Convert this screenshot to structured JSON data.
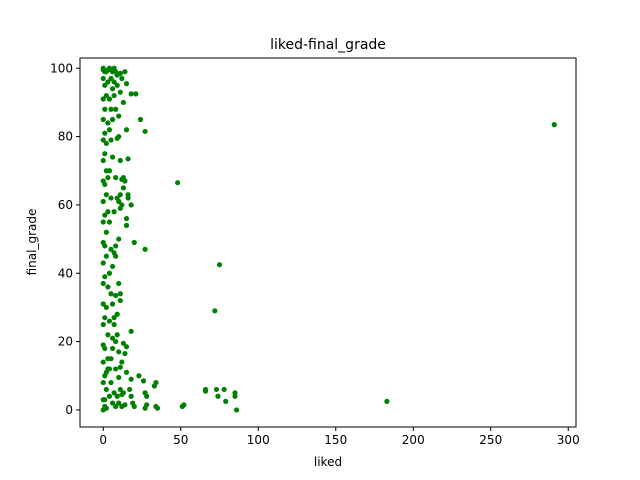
{
  "chart_data": {
    "type": "scatter",
    "title": "liked-final_grade",
    "xlabel": "liked",
    "ylabel": "final_grade",
    "xlim": [
      -15,
      305
    ],
    "ylim": [
      -5,
      103
    ],
    "xticks": [
      0,
      50,
      100,
      150,
      200,
      250,
      300
    ],
    "yticks": [
      0,
      20,
      40,
      60,
      80,
      100
    ],
    "grid": false,
    "legend": "none",
    "marker_color": "#008000",
    "series": [
      {
        "points": [
          [
            291,
            83.5
          ],
          [
            183,
            2.5
          ],
          [
            48,
            66.5
          ],
          [
            75,
            42.5
          ],
          [
            72,
            29
          ],
          [
            51,
            1
          ],
          [
            52,
            1.5
          ],
          [
            66,
            5.5
          ],
          [
            66,
            6
          ],
          [
            73,
            6
          ],
          [
            74,
            4
          ],
          [
            78,
            6
          ],
          [
            79,
            2.5
          ],
          [
            85,
            5
          ],
          [
            85,
            4
          ],
          [
            86,
            0
          ],
          [
            33,
            7
          ],
          [
            34,
            8
          ],
          [
            34,
            1
          ],
          [
            35,
            0.5
          ],
          [
            27,
            5
          ],
          [
            28,
            4
          ],
          [
            28,
            1.5
          ],
          [
            27,
            0.5
          ],
          [
            26,
            8.5
          ],
          [
            23,
            10
          ],
          [
            18,
            9
          ],
          [
            18,
            4
          ],
          [
            19,
            2
          ],
          [
            20,
            1
          ],
          [
            17,
            6
          ],
          [
            13,
            5
          ],
          [
            12,
            4.5
          ],
          [
            14,
            1.5
          ],
          [
            15,
            11
          ],
          [
            11,
            12.5
          ],
          [
            12,
            14
          ],
          [
            14,
            16.5
          ],
          [
            15,
            18.5
          ],
          [
            13,
            19.5
          ],
          [
            18,
            23
          ],
          [
            10,
            9.5
          ],
          [
            27,
            47
          ],
          [
            20,
            49
          ],
          [
            15,
            54
          ],
          [
            15,
            56
          ],
          [
            12,
            60
          ],
          [
            16,
            62
          ],
          [
            16,
            63
          ],
          [
            18,
            60
          ],
          [
            14,
            67
          ],
          [
            12,
            67.5
          ],
          [
            13,
            68
          ],
          [
            10,
            61
          ],
          [
            11,
            63
          ],
          [
            9,
            62
          ],
          [
            13,
            65
          ],
          [
            11,
            59
          ],
          [
            8,
            48
          ],
          [
            7,
            46
          ],
          [
            8,
            45
          ],
          [
            10,
            37
          ],
          [
            8,
            33.5
          ],
          [
            11,
            32
          ],
          [
            11,
            34
          ],
          [
            7,
            27
          ],
          [
            7,
            25
          ],
          [
            8,
            20
          ],
          [
            6,
            21
          ],
          [
            9,
            22
          ],
          [
            5,
            15
          ],
          [
            10,
            17
          ],
          [
            11,
            73
          ],
          [
            16,
            73.5
          ],
          [
            27,
            81.5
          ],
          [
            15,
            82
          ],
          [
            9,
            79.5
          ],
          [
            10,
            80
          ],
          [
            6,
            85
          ],
          [
            10,
            86
          ],
          [
            24,
            85
          ],
          [
            8,
            88
          ],
          [
            13,
            90
          ],
          [
            21,
            92.5
          ],
          [
            18,
            92.5
          ],
          [
            15,
            95.5
          ],
          [
            11,
            93
          ],
          [
            7,
            96
          ],
          [
            5,
            97
          ],
          [
            12,
            97
          ],
          [
            8,
            99
          ],
          [
            11,
            98.5
          ],
          [
            14,
            99
          ],
          [
            5,
            99.5
          ],
          [
            3,
            96
          ],
          [
            4,
            91
          ],
          [
            3,
            84
          ],
          [
            2,
            70
          ],
          [
            4,
            70
          ],
          [
            3,
            58
          ],
          [
            2,
            52
          ],
          [
            4,
            40
          ],
          [
            3,
            36
          ],
          [
            2,
            30
          ],
          [
            3,
            12
          ],
          [
            4,
            4
          ],
          [
            2,
            6
          ],
          [
            1,
            1
          ],
          [
            0,
            0
          ],
          [
            0,
            3
          ],
          [
            0,
            8
          ],
          [
            0,
            14
          ],
          [
            0,
            19
          ],
          [
            0,
            25
          ],
          [
            0,
            31
          ],
          [
            0,
            37
          ],
          [
            0,
            43
          ],
          [
            0,
            49
          ],
          [
            0,
            55
          ],
          [
            0,
            61
          ],
          [
            0,
            67
          ],
          [
            0,
            73
          ],
          [
            0,
            79
          ],
          [
            0,
            85
          ],
          [
            0,
            91
          ],
          [
            0,
            97
          ],
          [
            0,
            100
          ],
          [
            1,
            99
          ],
          [
            1,
            95
          ],
          [
            1,
            88
          ],
          [
            1,
            81
          ],
          [
            1,
            75
          ],
          [
            1,
            66
          ],
          [
            1,
            57
          ],
          [
            1,
            48
          ],
          [
            1,
            39
          ],
          [
            1,
            27
          ],
          [
            1,
            18
          ],
          [
            1,
            10
          ],
          [
            1,
            3
          ],
          [
            2,
            0.5
          ],
          [
            2,
            45
          ],
          [
            2,
            63
          ],
          [
            2,
            78
          ],
          [
            2,
            92
          ],
          [
            3,
            22
          ],
          [
            3,
            68
          ],
          [
            4,
            12
          ],
          [
            4,
            55
          ],
          [
            4,
            82
          ],
          [
            5,
            8
          ],
          [
            5,
            34
          ],
          [
            5,
            62
          ],
          [
            5,
            88
          ],
          [
            6,
            2
          ],
          [
            6,
            18
          ],
          [
            6,
            42
          ],
          [
            6,
            74
          ],
          [
            6,
            99
          ],
          [
            7,
            5
          ],
          [
            7,
            58
          ],
          [
            7,
            92
          ],
          [
            8,
            1
          ],
          [
            8,
            12
          ],
          [
            8,
            68
          ],
          [
            9,
            4
          ],
          [
            9,
            28
          ],
          [
            9,
            95
          ],
          [
            10,
            2
          ],
          [
            10,
            50
          ],
          [
            11,
            6
          ],
          [
            12,
            1
          ],
          [
            3,
            99.5
          ],
          [
            4,
            100
          ],
          [
            0,
            99.5
          ],
          [
            2,
            99
          ],
          [
            7,
            100
          ],
          [
            9,
            98
          ],
          [
            6,
            94
          ],
          [
            5,
            79
          ],
          [
            4,
            26
          ],
          [
            5,
            47
          ],
          [
            6,
            31
          ],
          [
            3,
            15
          ],
          [
            2,
            11
          ]
        ]
      }
    ]
  }
}
